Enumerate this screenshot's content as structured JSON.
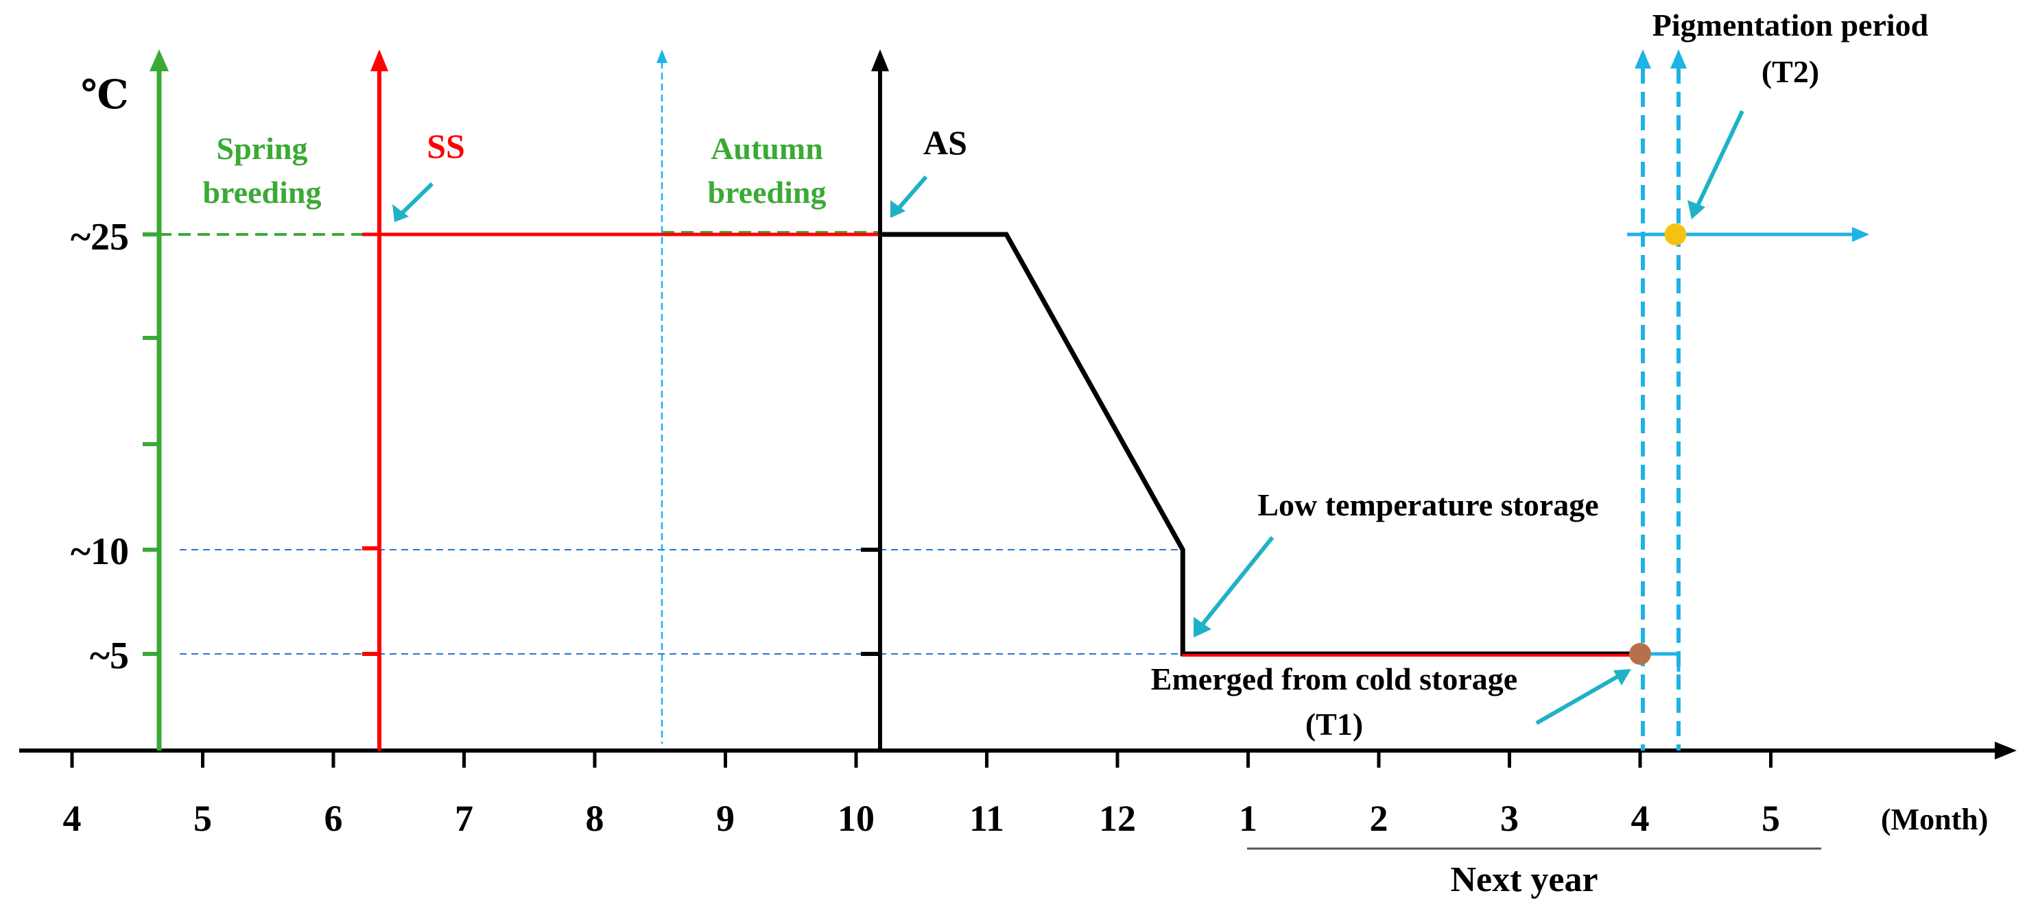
{
  "chart_data": {
    "type": "line",
    "ylabel": "℃",
    "xlabel": "(Month)",
    "x_tick_labels": [
      "4",
      "5",
      "6",
      "7",
      "8",
      "9",
      "10",
      "11",
      "12",
      "1",
      "2",
      "3",
      "4",
      "5"
    ],
    "y_tick_labels": [
      "~25",
      "~10",
      "~5"
    ],
    "next_year_label": "Next year",
    "series": [
      {
        "name": "temperature",
        "color": "#000000",
        "points": [
          {
            "month_index": 6.2,
            "temp": 25
          },
          {
            "month_index": 7.15,
            "temp": 25
          },
          {
            "month_index": 8.5,
            "temp": 10
          },
          {
            "month_index": 8.5,
            "temp": 5
          },
          {
            "month_index": 12.0,
            "temp": 5
          }
        ]
      }
    ],
    "markers": [
      {
        "name": "spring-breeding",
        "label_lines": [
          "Spring",
          "breeding"
        ],
        "month_index": 0.65,
        "color": "#3aaa35"
      },
      {
        "name": "ss",
        "label": "SS",
        "month_index": 2.35,
        "color": "#ff0000"
      },
      {
        "name": "autumn-breeding",
        "label_lines": [
          "Autumn",
          "breeding"
        ],
        "month_index": 4.5,
        "color": "#1fb2e6"
      },
      {
        "name": "as",
        "label": "AS",
        "month_index": 6.2,
        "color": "#000000"
      }
    ],
    "annotations": {
      "low_temp": "Low temperature storage",
      "emerged_lines": [
        "Emerged from cold storage",
        "(T1)"
      ],
      "pigmentation_lines": [
        "Pigmentation period",
        "(T2)"
      ]
    },
    "points": [
      {
        "name": "T1",
        "month_index": 12.0,
        "temp": 5,
        "color": "#b8704a"
      },
      {
        "name": "T2",
        "month_index": 12.27,
        "temp": 25,
        "color": "#f5c211"
      }
    ],
    "colors": {
      "green": "#3aaa35",
      "red": "#ff0000",
      "blue": "#1fb2e6",
      "guide": "#2e75c7",
      "black": "#000000",
      "gray": "#555555"
    }
  }
}
